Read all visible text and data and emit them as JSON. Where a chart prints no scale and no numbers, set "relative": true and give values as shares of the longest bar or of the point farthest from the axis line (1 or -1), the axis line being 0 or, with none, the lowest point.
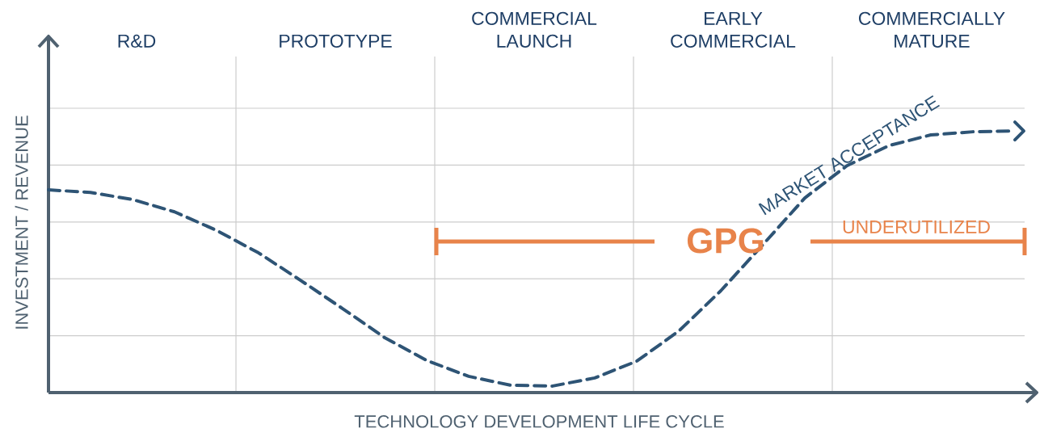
{
  "chart_data": {
    "type": "line",
    "relative": true,
    "xlabel": "TECHNOLOGY DEVELOPMENT LIFE CYCLE",
    "ylabel": "INVESTMENT / REVENUE",
    "categories": [
      null,
      null,
      null,
      null,
      null,
      null,
      null,
      null,
      null,
      null,
      null,
      null,
      null,
      null,
      null,
      null,
      null,
      null,
      null,
      null,
      null,
      null,
      null,
      null
    ],
    "series": [
      {
        "name": "MARKET ACCEPTANCE",
        "color": "#2e5475",
        "values": [
          0.775,
          0.765,
          0.738,
          0.691,
          0.62,
          0.534,
          0.429,
          0.321,
          0.21,
          0.123,
          0.062,
          0.028,
          0.025,
          0.056,
          0.12,
          0.235,
          0.389,
          0.565,
          0.744,
          0.867,
          0.944,
          0.985,
          0.997,
          1.0
        ]
      }
    ],
    "annotations": [
      "R&D",
      "PROTOTYPE",
      "COMMERCIAL LAUNCH",
      "EARLY COMMERCIAL",
      "COMMERCIALLY MATURE",
      "GPG",
      "UNDERUTILIZED"
    ],
    "grid": true,
    "marker": "none",
    "line_style": "dashed"
  }
}
